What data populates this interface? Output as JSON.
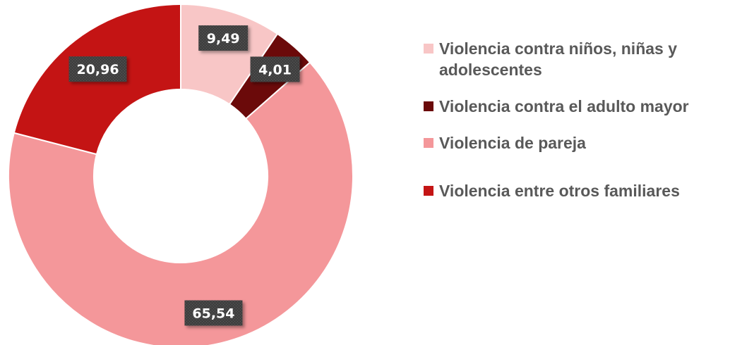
{
  "chart_data": {
    "type": "pie",
    "donut": true,
    "categories": [
      "Violencia contra niños, niñas y adolescentes",
      "Violencia contra el adulto mayor",
      "Violencia de pareja",
      "Violencia entre otros familiares"
    ],
    "values": [
      9.49,
      4.01,
      65.54,
      20.96
    ],
    "data_labels": [
      "9,49",
      "4,01",
      "65,54",
      "20,96"
    ],
    "colors": [
      "#F8C6C6",
      "#6B0A0A",
      "#F4979A",
      "#C41414"
    ],
    "legend_position": "right"
  },
  "legend": {
    "items": [
      {
        "label": "Violencia contra niños, niñas y adolescentes",
        "color": "#F8C6C6"
      },
      {
        "label": "Violencia contra el adulto mayor",
        "color": "#6B0A0A"
      },
      {
        "label": "Violencia de pareja",
        "color": "#F4979A"
      },
      {
        "label": "Violencia entre otros familiares",
        "color": "#C41414"
      }
    ]
  }
}
